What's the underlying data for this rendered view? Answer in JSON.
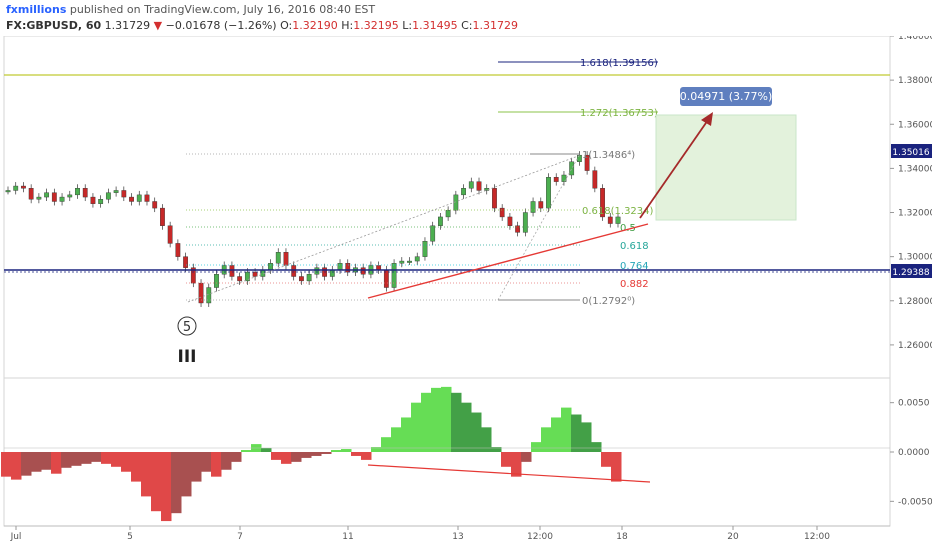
{
  "header": {
    "publisher": "fxmillions",
    "published_text": "published on TradingView.com, July 16, 2016 08:40 EST",
    "symbol": "FX:GBPUSD, 60",
    "last": "1.31729",
    "change": "−0.01678 (−1.26%)",
    "o_label": "O:",
    "o": "1.32190",
    "h_label": "H:",
    "h": "1.32195",
    "l_label": "L:",
    "l": "1.31495",
    "c_label": "C:",
    "c": "1.31729"
  },
  "colors": {
    "up": "#4caf50",
    "down": "#c62828",
    "blue_line": "#1a237e",
    "olive_line": "#c0ca33",
    "trend_red": "#e53935",
    "arrow": "#a52a2a",
    "target_box": "#e3f2dc",
    "label_bg": "#5f7fbf"
  },
  "chart_data": [
    {
      "type": "line",
      "panel": "price",
      "y_axis_ticks": [
        "1.40000",
        "1.38000",
        "1.36000",
        "1.34000",
        "1.32000",
        "1.30000",
        "1.28000",
        "1.26000"
      ],
      "ylim": [
        1.245,
        1.4
      ],
      "x_axis_ticks": [
        "Jul",
        "5",
        "7",
        "11",
        "13",
        "12:00",
        "18",
        "20",
        "12:00"
      ],
      "price_badges": [
        "1.35016",
        "1.29388"
      ],
      "series": [
        {
          "values": [
            1.33,
            1.332,
            1.331,
            1.326,
            1.327,
            1.329,
            1.325,
            1.327,
            1.328,
            1.331,
            1.327,
            1.324,
            1.326,
            1.329,
            1.33,
            1.327,
            1.325,
            1.328,
            1.325,
            1.322,
            1.314,
            1.306,
            1.3,
            1.295,
            1.288,
            1.279,
            1.286,
            1.292,
            1.296,
            1.291,
            1.289,
            1.293,
            1.291,
            1.294,
            1.297,
            1.302,
            1.296,
            1.291,
            1.289,
            1.292,
            1.295,
            1.291,
            1.294,
            1.297,
            1.293,
            1.295,
            1.292,
            1.296,
            1.294,
            1.286,
            1.297,
            1.298,
            1.298,
            1.3,
            1.307,
            1.314,
            1.318,
            1.321,
            1.328,
            1.331,
            1.334,
            1.33,
            1.331,
            1.322,
            1.318,
            1.314,
            1.311,
            1.32,
            1.325,
            1.322,
            1.336,
            1.334,
            1.337,
            1.343,
            1.346,
            1.339,
            1.331,
            1.318,
            1.315,
            1.318
          ]
        }
      ]
    },
    {
      "type": "area",
      "panel": "oscillator",
      "y_axis_ticks": [
        "0.0050",
        "0.0000",
        "-0.0050"
      ],
      "ylim": [
        -0.0075,
        0.0075
      ],
      "series": [
        {
          "values": [
            -0.0025,
            -0.0028,
            -0.0024,
            -0.002,
            -0.0018,
            -0.0022,
            -0.0016,
            -0.0014,
            -0.0012,
            -0.001,
            -0.0012,
            -0.0015,
            -0.002,
            -0.003,
            -0.0045,
            -0.006,
            -0.007,
            -0.0062,
            -0.0045,
            -0.003,
            -0.002,
            -0.0025,
            -0.0018,
            -0.001,
            0.0002,
            0.0008,
            0.0004,
            -0.0008,
            -0.0012,
            -0.001,
            -0.0006,
            -0.0004,
            -0.0002,
            0.0002,
            0.0003,
            -0.0004,
            -0.0008,
            0.0005,
            0.0015,
            0.0025,
            0.0035,
            0.005,
            0.006,
            0.0065,
            0.0066,
            0.006,
            0.005,
            0.004,
            0.0025,
            0.0005,
            -0.0015,
            -0.0025,
            -0.001,
            0.001,
            0.0025,
            0.0035,
            0.0045,
            0.0038,
            0.003,
            0.001,
            -0.0015,
            -0.003
          ]
        }
      ]
    }
  ],
  "fib": [
    {
      "label": "1.618(1.39156)"
    },
    {
      "label": "1.272(1.36753)"
    },
    {
      "label": "1(1.3486⁴)"
    },
    {
      "label": "0.618(1.3234)"
    },
    {
      "label": "0.5"
    },
    {
      "label": "0.618"
    },
    {
      "label": "0.764"
    },
    {
      "label": "0.882"
    },
    {
      "label": "0(1.2792⁰)"
    }
  ],
  "target_label": "0.04971 (3.77%)",
  "wave_label": "5",
  "wave_degree": "III"
}
